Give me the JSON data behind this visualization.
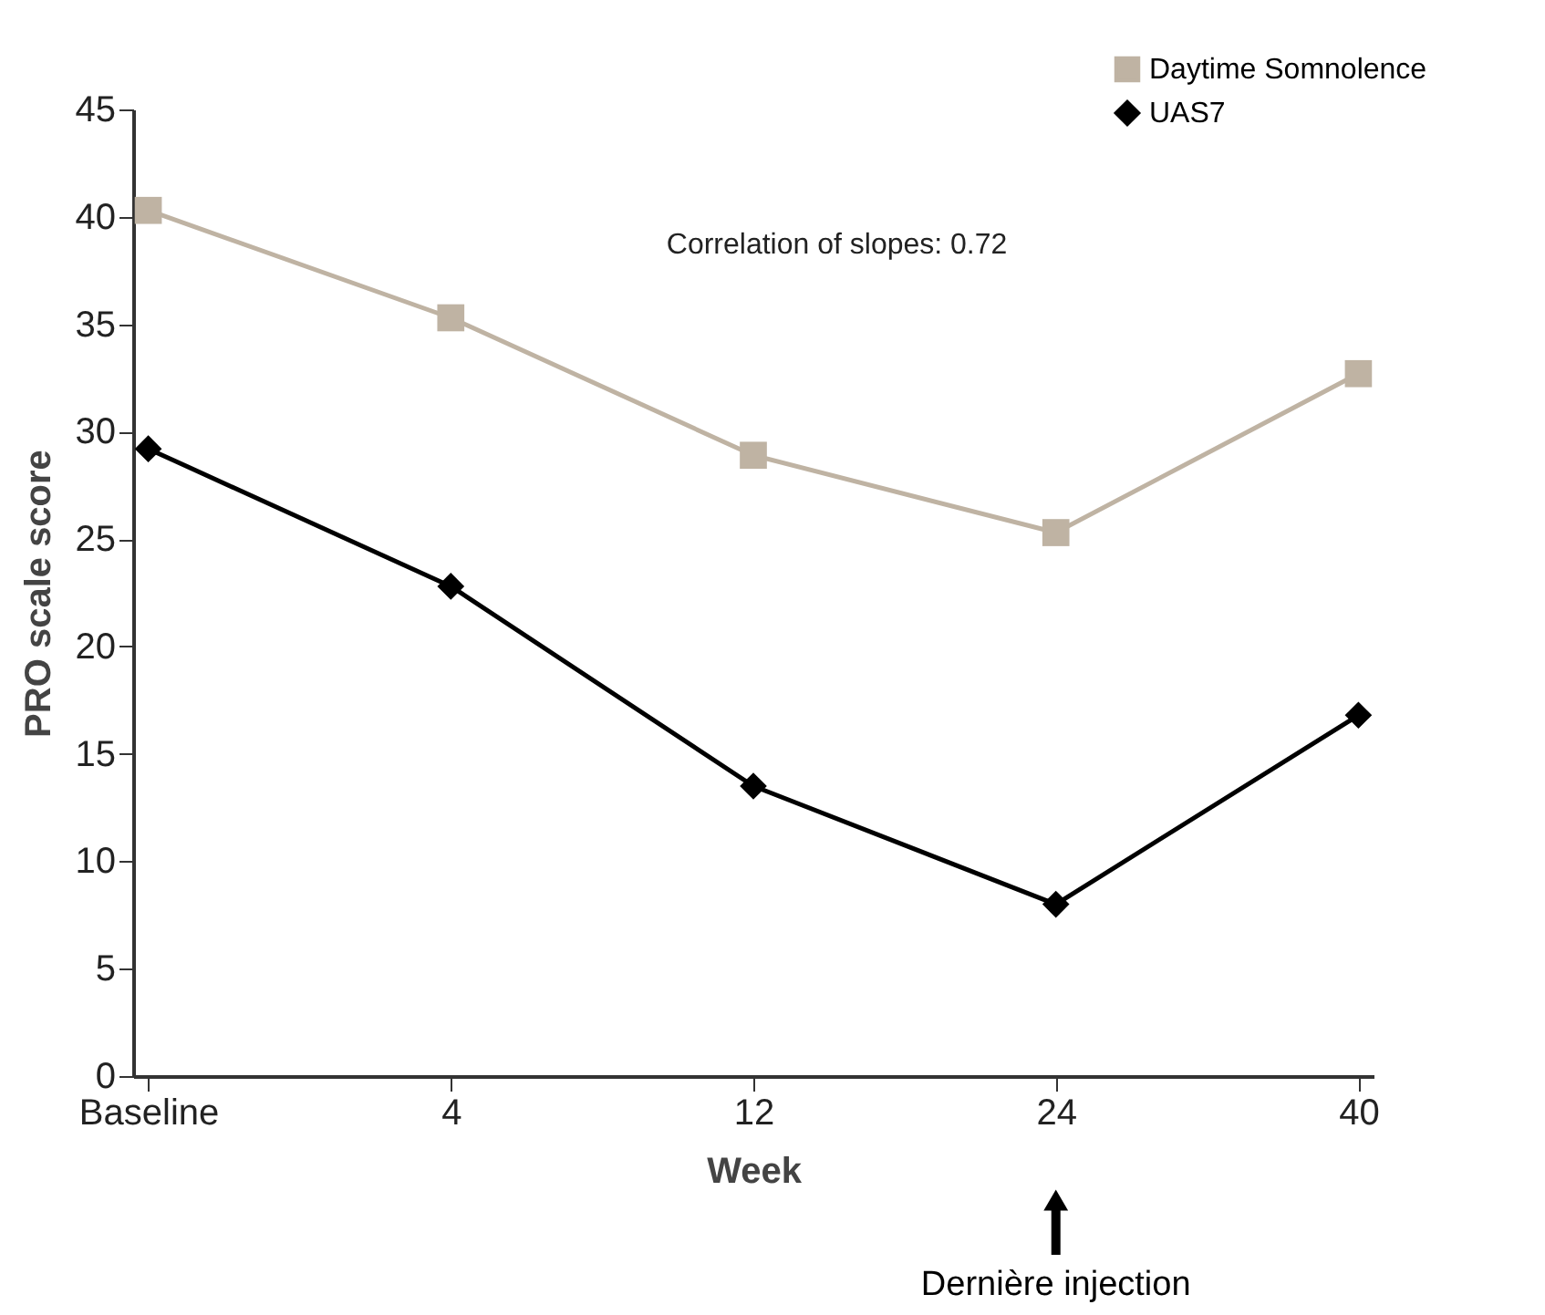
{
  "chart_data": {
    "type": "line",
    "xlabel": "Week",
    "ylabel": "PRO scale score",
    "categories": [
      "Baseline",
      "4",
      "12",
      "24",
      "40"
    ],
    "series": [
      {
        "name": "Daytime Somnolence",
        "color": "#bfb3a3",
        "marker": "square",
        "values": [
          40.3,
          35.3,
          28.9,
          25.3,
          32.7
        ]
      },
      {
        "name": "UAS7",
        "color": "#000000",
        "marker": "diamond",
        "values": [
          29.2,
          22.8,
          13.5,
          8.0,
          16.8
        ]
      }
    ],
    "ylim": [
      0,
      45
    ],
    "yticks": [
      0,
      5,
      10,
      15,
      20,
      25,
      30,
      35,
      40,
      45
    ],
    "grid": false,
    "legend": "top right",
    "line_style": "solid",
    "annotations": [
      "Correlation of slopes: 0.72",
      {
        "text": "Dernière injection",
        "x": "24"
      }
    ]
  }
}
